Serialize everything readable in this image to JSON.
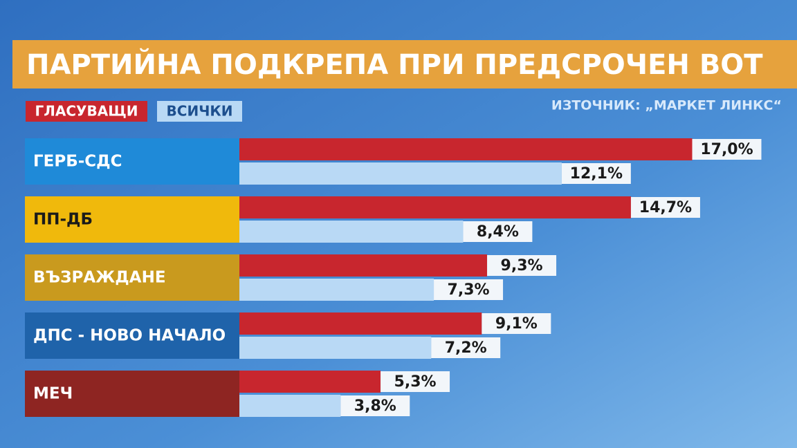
{
  "chart_data": {
    "type": "bar",
    "title": "ПАРТИЙНА ПОДКРЕПА ПРИ ПРЕДСРОЧЕН ВОТ",
    "source": "ИЗТОЧНИК: „МАРКЕТ ЛИНКС“",
    "orientation": "horizontal",
    "categories": [
      "ГЕРБ-СДС",
      "ПП-ДБ",
      "ВЪЗРАЖДАНЕ",
      "ДПС - НОВО НАЧАЛО",
      "МЕЧ"
    ],
    "category_colors": [
      "#1f8ad8",
      "#f0b90c",
      "#c99a1e",
      "#1f63aa",
      "#8e2522"
    ],
    "series": [
      {
        "name": "ГЛАСУВАЩИ",
        "color": "#c8262e",
        "values": [
          17.0,
          14.7,
          9.3,
          9.1,
          5.3
        ],
        "value_labels": [
          "17,0%",
          "14,7%",
          "9,3%",
          "9,1%",
          "5,3%"
        ]
      },
      {
        "name": "ВСИЧКИ",
        "color": "#b9d9f5",
        "values": [
          12.1,
          8.4,
          7.3,
          7.2,
          3.8
        ],
        "value_labels": [
          "12,1%",
          "8,4%",
          "7,3%",
          "7,2%",
          "3,8%"
        ]
      }
    ]
  }
}
